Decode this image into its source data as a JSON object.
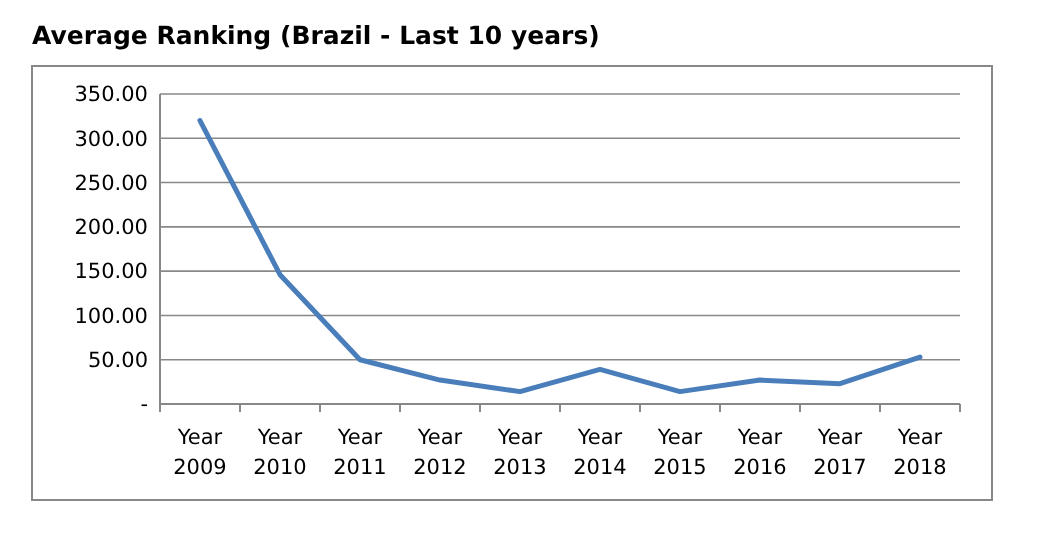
{
  "chart_data": {
    "type": "line",
    "title": "Average Ranking (Brazil - Last 10 years)",
    "categories": [
      "Year 2009",
      "Year 2010",
      "Year 2011",
      "Year 2012",
      "Year 2013",
      "Year 2014",
      "Year 2015",
      "Year 2016",
      "Year 2017",
      "Year 2018"
    ],
    "series": [
      {
        "color": "#4a7ebb",
        "values": [
          320,
          146,
          50,
          27,
          14,
          39,
          14,
          27,
          23,
          53
        ]
      }
    ],
    "ylim": [
      0,
      350
    ],
    "yticks": [
      {
        "value": 0,
        "label": "-"
      },
      {
        "value": 50,
        "label": "50.00"
      },
      {
        "value": 100,
        "label": "100.00"
      },
      {
        "value": 150,
        "label": "150.00"
      },
      {
        "value": 200,
        "label": "200.00"
      },
      {
        "value": 250,
        "label": "250.00"
      },
      {
        "value": 300,
        "label": "300.00"
      },
      {
        "value": 350,
        "label": "350.00"
      }
    ],
    "grid": "y",
    "marker": "none",
    "line_style": "solid"
  }
}
